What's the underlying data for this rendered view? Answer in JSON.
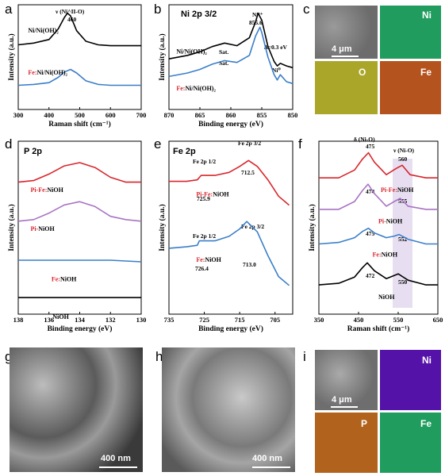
{
  "panel_labels": [
    "a",
    "b",
    "c",
    "d",
    "e",
    "f",
    "g",
    "h",
    "i"
  ],
  "scalebars": {
    "c": "4 μm",
    "g": "400 nm",
    "h": "400 nm",
    "i": "4 μm"
  },
  "map_c": [
    {
      "label": "Ni",
      "color": "#1f9c5e"
    },
    {
      "label": "O",
      "color": "#a9a62a"
    },
    {
      "label": "Fe",
      "color": "#b5531f"
    }
  ],
  "map_i": [
    {
      "label": "Ni",
      "color": "#5512a8"
    },
    {
      "label": "P",
      "color": "#b1621d"
    },
    {
      "label": "Fe",
      "color": "#1f9c5e"
    }
  ],
  "chart_data": [
    {
      "panel": "a",
      "type": "line",
      "xlabel": "Raman shift (cm⁻¹)",
      "ylabel": "Intensity (a.u.)",
      "xlim": [
        300,
        700
      ],
      "xticks": [
        300,
        400,
        500,
        600,
        700
      ],
      "series": [
        {
          "name": "Ni/Ni(OH)₂",
          "color": "#000000",
          "x": [
            300,
            350,
            400,
            430,
            450,
            460,
            470,
            490,
            520,
            560,
            600,
            650,
            700
          ],
          "y": [
            0.64,
            0.66,
            0.7,
            0.82,
            0.95,
            1.0,
            0.97,
            0.8,
            0.68,
            0.64,
            0.63,
            0.63,
            0.63
          ]
        },
        {
          "name_prefix": "Fe:",
          "name": "Ni/Ni(OH)₂",
          "color": "#3a7ec9",
          "x": [
            300,
            350,
            400,
            430,
            450,
            470,
            490,
            520,
            560,
            600,
            650,
            700
          ],
          "y": [
            0.18,
            0.19,
            0.21,
            0.27,
            0.33,
            0.36,
            0.32,
            0.23,
            0.19,
            0.18,
            0.18,
            0.18
          ]
        }
      ],
      "annotations": [
        "ν (Ni^II-O)",
        "460"
      ]
    },
    {
      "panel": "b",
      "type": "line",
      "title": "Ni 2p 3/2",
      "xlabel": "Binding energy (eV)",
      "ylabel": "Intensity (a.u.)",
      "xlim": [
        870,
        850
      ],
      "xticks": [
        870,
        865,
        860,
        855,
        850
      ],
      "series": [
        {
          "name": "Ni/Ni(OH)₂",
          "color": "#000000",
          "x": [
            870,
            867,
            865,
            863,
            861,
            859,
            857,
            856,
            855.6,
            855,
            854,
            853,
            852.5,
            852,
            851,
            850
          ],
          "y": [
            0.48,
            0.52,
            0.56,
            0.62,
            0.66,
            0.63,
            0.72,
            0.9,
            1.0,
            0.92,
            0.62,
            0.45,
            0.4,
            0.43,
            0.4,
            0.38
          ]
        },
        {
          "name_prefix": "Fe:",
          "name": "Ni/Ni(OH)₂",
          "color": "#3a7ec9",
          "x": [
            870,
            867,
            865,
            863,
            861,
            859,
            857,
            856,
            855.3,
            855,
            854,
            853,
            852.5,
            852,
            851,
            850
          ],
          "y": [
            0.28,
            0.32,
            0.36,
            0.42,
            0.46,
            0.44,
            0.52,
            0.74,
            0.84,
            0.78,
            0.5,
            0.3,
            0.24,
            0.3,
            0.22,
            0.2
          ]
        }
      ],
      "annotations": [
        "Sat.",
        "Sat.",
        "Ni²⁺",
        "855.6",
        "Δ=0.3 eV",
        "Ni⁰"
      ]
    },
    {
      "panel": "d",
      "type": "line",
      "title": "P 2p",
      "xlabel": "Binding energy (eV)",
      "ylabel": "Intensity (a.u.)",
      "xlim": [
        138,
        130
      ],
      "xticks": [
        138,
        136,
        134,
        132,
        130
      ],
      "series": [
        {
          "name_prefix": "Pi-Fe:",
          "name": "NiOH",
          "color": "#d8262c",
          "x": [
            138,
            137,
            136,
            135,
            134,
            133,
            132,
            131,
            130
          ],
          "y": [
            0.78,
            0.79,
            0.83,
            0.88,
            0.9,
            0.87,
            0.81,
            0.78,
            0.78
          ]
        },
        {
          "name_prefix": "Pi-",
          "name": "NiOH",
          "color": "#a874c4",
          "x": [
            138,
            137,
            136,
            135,
            134,
            133,
            132,
            131,
            130
          ],
          "y": [
            0.54,
            0.55,
            0.59,
            0.64,
            0.66,
            0.63,
            0.57,
            0.55,
            0.54
          ]
        },
        {
          "name_prefix": "Fe:",
          "name": "NiOH",
          "color": "#3a7ec9",
          "x": [
            138,
            136,
            134,
            132,
            130
          ],
          "y": [
            0.3,
            0.3,
            0.3,
            0.3,
            0.29
          ]
        },
        {
          "name": "NiOH",
          "color": "#000000",
          "x": [
            138,
            136,
            134,
            132,
            130
          ],
          "y": [
            0.07,
            0.07,
            0.07,
            0.07,
            0.07
          ]
        }
      ]
    },
    {
      "panel": "e",
      "type": "line",
      "title": "Fe 2p",
      "xlabel": "Binding energy (eV)",
      "ylabel": "Intensity (a.u.)",
      "xlim": [
        735,
        700
      ],
      "xticks": [
        735,
        725,
        715,
        705
      ],
      "series": [
        {
          "name_prefix": "Pi-Fe:",
          "name": "NiOH",
          "color": "#d8262c",
          "x": [
            735,
            730,
            727,
            725.9,
            722,
            718,
            715,
            712.5,
            710,
            707,
            704,
            701
          ],
          "y": [
            0.8,
            0.8,
            0.81,
            0.84,
            0.84,
            0.86,
            0.9,
            0.94,
            0.9,
            0.81,
            0.7,
            0.64
          ]
        },
        {
          "name_prefix": "Fe:",
          "name": "NiOH",
          "color": "#3a7ec9",
          "x": [
            735,
            730,
            727,
            726.4,
            722,
            718,
            715,
            713.0,
            710,
            707,
            704,
            701
          ],
          "y": [
            0.35,
            0.36,
            0.37,
            0.4,
            0.4,
            0.43,
            0.48,
            0.53,
            0.46,
            0.3,
            0.16,
            0.1
          ]
        }
      ],
      "annotations": [
        "Fe 2p 3/2",
        "712.5",
        "Fe 2p 1/2",
        "725.9",
        "Fe 2p 1/2",
        "726.4",
        "Fe 2p 3/2",
        "713.0"
      ]
    },
    {
      "panel": "f",
      "type": "line",
      "xlabel": "Raman shift (cm⁻¹)",
      "ylabel": "Intensity (a.u.)",
      "xlim": [
        350,
        650
      ],
      "xticks": [
        350,
        450,
        550,
        650
      ],
      "series": [
        {
          "name_prefix": "Pi-Fe:",
          "name": "NiOH",
          "color": "#d8262c",
          "x": [
            350,
            400,
            440,
            460,
            475,
            490,
            520,
            545,
            560,
            580,
            620,
            650
          ],
          "y": [
            0.8,
            0.8,
            0.85,
            0.92,
            0.96,
            0.9,
            0.82,
            0.86,
            0.88,
            0.82,
            0.8,
            0.8
          ]
        },
        {
          "name_prefix": "Pi-",
          "name": "NiOH",
          "color": "#a874c4",
          "x": [
            350,
            400,
            440,
            460,
            474,
            490,
            520,
            540,
            555,
            575,
            620,
            650
          ],
          "y": [
            0.6,
            0.6,
            0.65,
            0.72,
            0.76,
            0.7,
            0.62,
            0.65,
            0.67,
            0.62,
            0.6,
            0.6
          ]
        },
        {
          "name_prefix": "Fe:",
          "name": "NiOH",
          "color": "#3a7ec9",
          "x": [
            350,
            400,
            440,
            460,
            475,
            490,
            520,
            540,
            552,
            575,
            620,
            650
          ],
          "y": [
            0.38,
            0.39,
            0.42,
            0.46,
            0.48,
            0.45,
            0.42,
            0.43,
            0.44,
            0.41,
            0.38,
            0.38
          ]
        },
        {
          "name": "NiOH",
          "color": "#000000",
          "x": [
            350,
            400,
            440,
            460,
            472,
            490,
            520,
            540,
            550,
            575,
            620,
            650
          ],
          "y": [
            0.12,
            0.13,
            0.17,
            0.23,
            0.26,
            0.21,
            0.16,
            0.18,
            0.19,
            0.15,
            0.12,
            0.12
          ]
        }
      ],
      "annotations": [
        "δ (Ni-O)",
        "ν (Ni-O)",
        "475",
        "560",
        "474",
        "555",
        "475",
        "552",
        "472",
        "550"
      ]
    }
  ]
}
